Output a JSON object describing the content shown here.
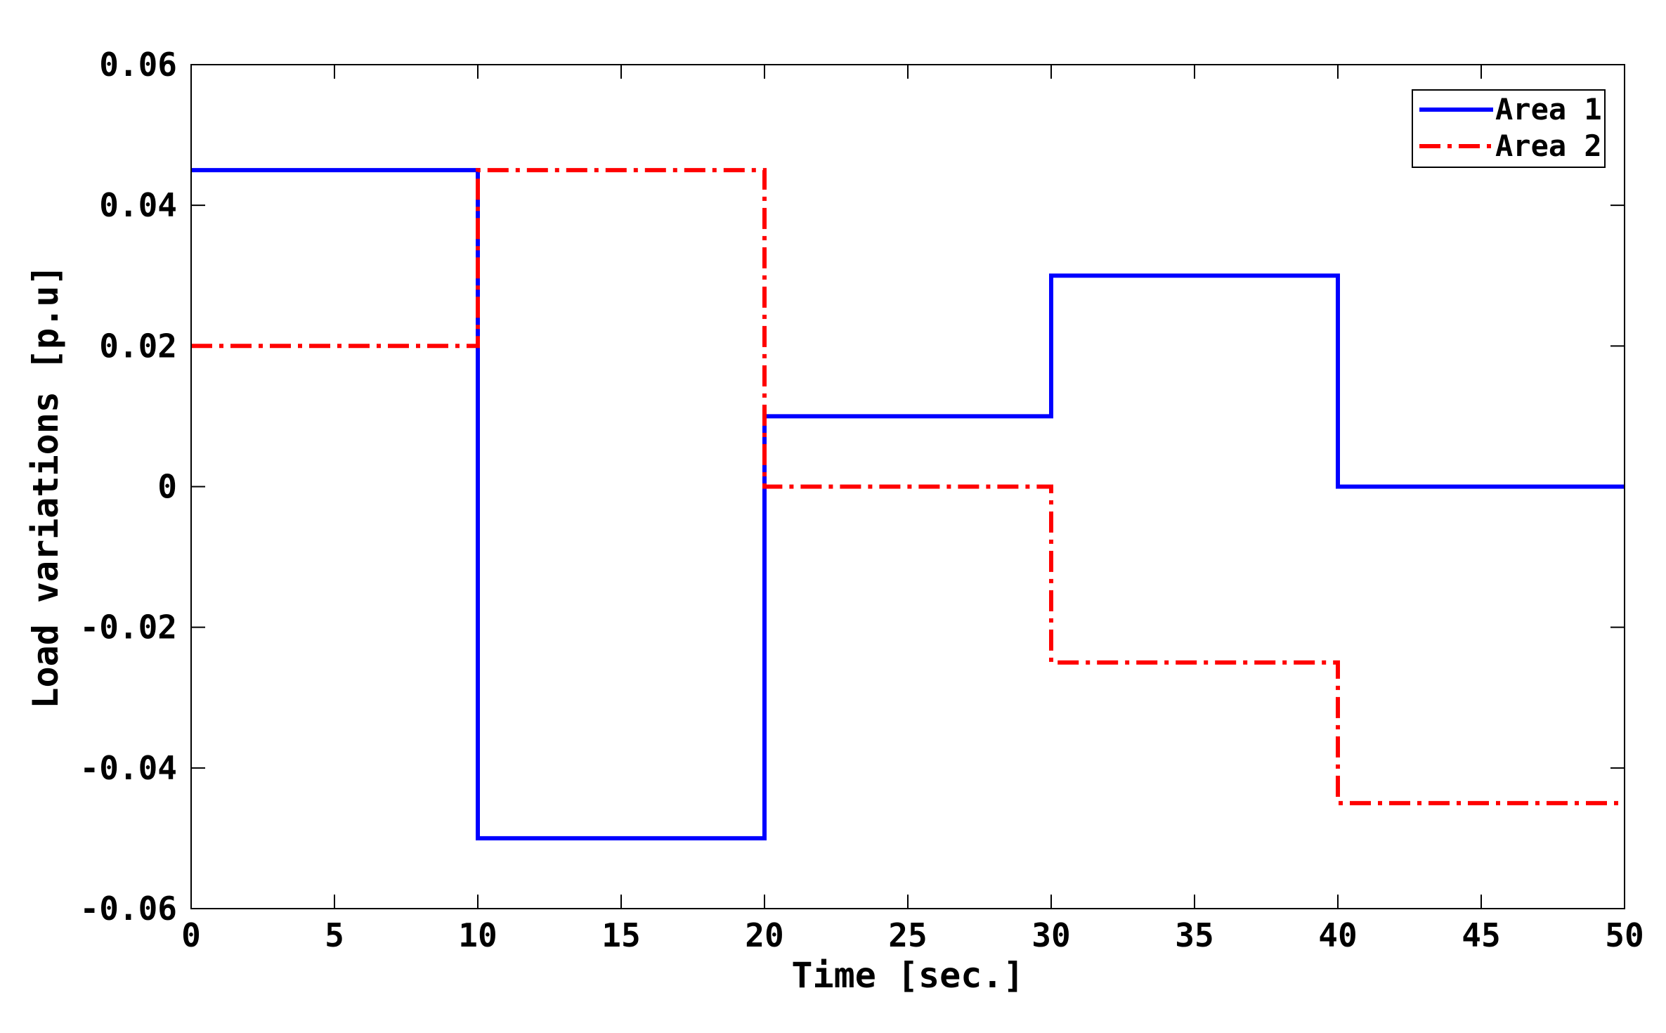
{
  "chart_data": {
    "type": "line",
    "title": "",
    "xlabel": "Time [sec.]",
    "ylabel": "Load variations [p.u]",
    "xlim": [
      0,
      50
    ],
    "ylim": [
      -0.06,
      0.06
    ],
    "xticks": [
      0,
      5,
      10,
      15,
      20,
      25,
      30,
      35,
      40,
      45,
      50
    ],
    "yticks": [
      -0.06,
      -0.04,
      -0.02,
      0,
      0.02,
      0.04,
      0.06
    ],
    "xtick_labels": [
      "0",
      "5",
      "10",
      "15",
      "20",
      "25",
      "30",
      "35",
      "40",
      "45",
      "50"
    ],
    "ytick_labels": [
      "-0.06",
      "-0.04",
      "-0.02",
      "0",
      "0.02",
      "0.04",
      "0.06"
    ],
    "grid": false,
    "legend_position": "top-right",
    "series": [
      {
        "name": "Area 1",
        "color": "#0000ff",
        "style": "solid",
        "step": true,
        "x": [
          0,
          10,
          20,
          30,
          40,
          50
        ],
        "y": [
          0.045,
          -0.05,
          0.01,
          0.03,
          0,
          0
        ]
      },
      {
        "name": "Area 2",
        "color": "#ff0000",
        "style": "dash-dot",
        "step": true,
        "x": [
          0,
          10,
          20,
          30,
          40,
          50
        ],
        "y": [
          0.02,
          0.045,
          0,
          -0.025,
          -0.045,
          -0.045
        ]
      }
    ]
  }
}
